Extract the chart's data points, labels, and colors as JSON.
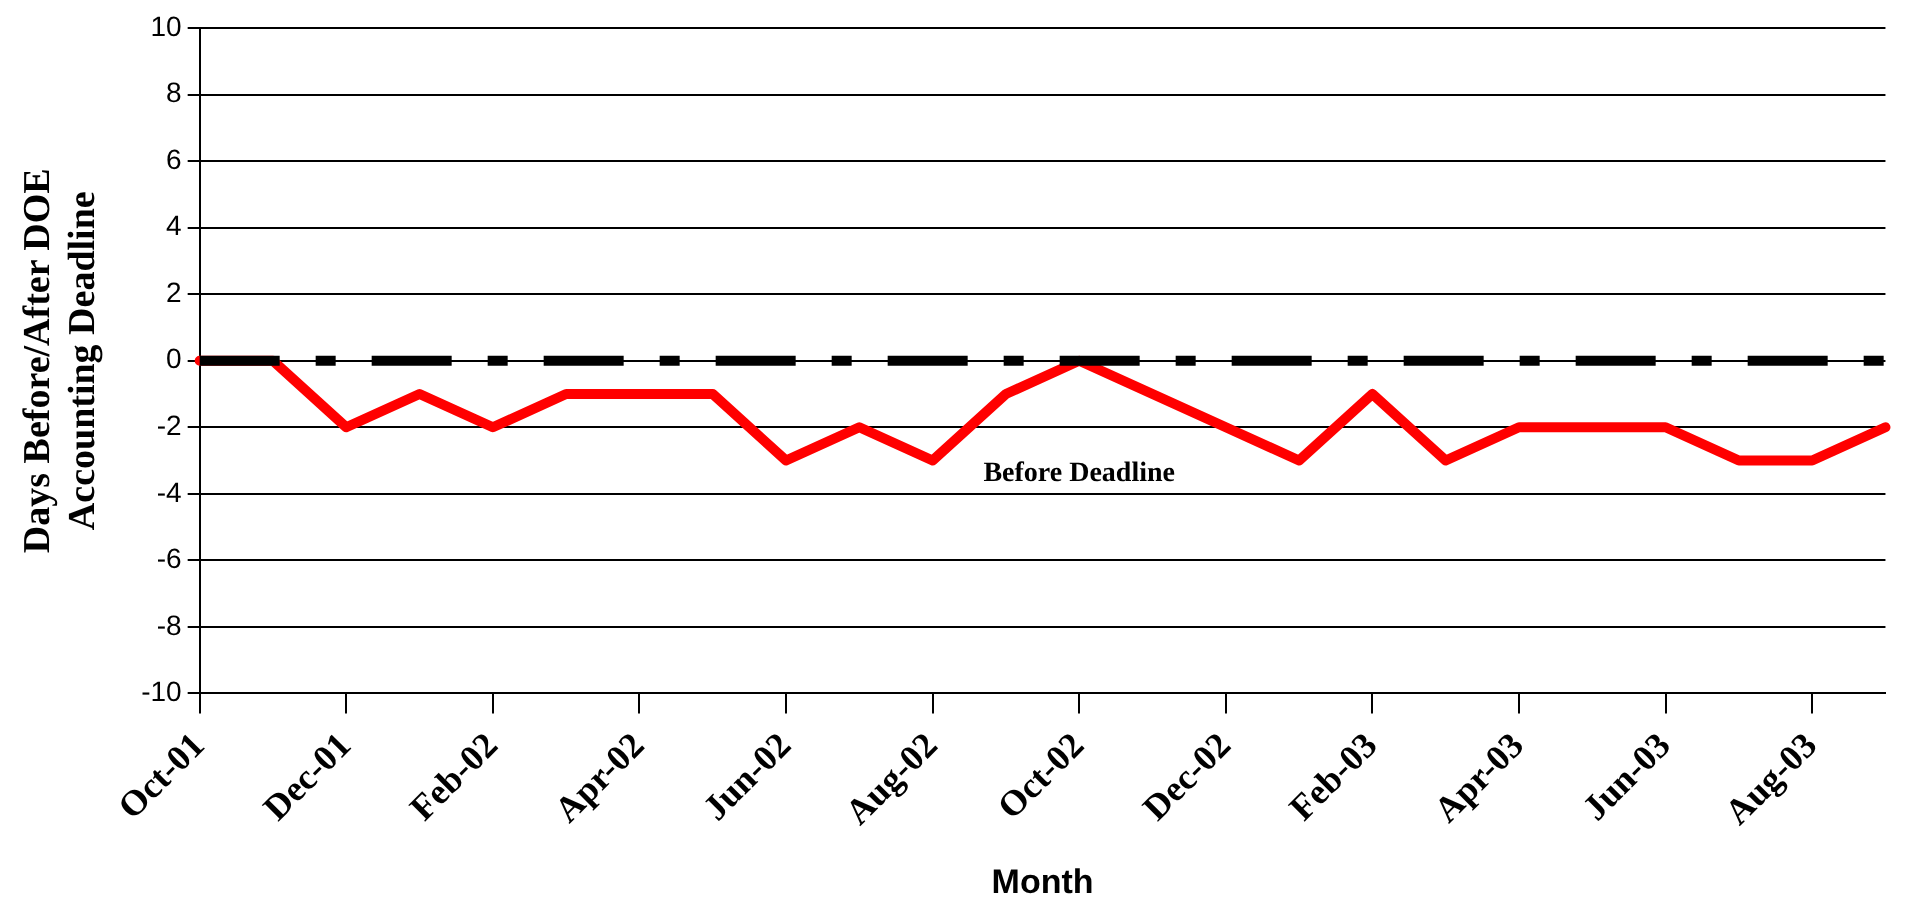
{
  "chart_data": {
    "type": "line",
    "xlabel": "Month",
    "ylabel": "Days Before/After DOE\nAccounting Deadline",
    "categories": [
      "Oct-01",
      null,
      "Dec-01",
      null,
      "Feb-02",
      null,
      "Apr-02",
      null,
      "Jun-02",
      null,
      "Aug-02",
      null,
      "Oct-02",
      null,
      "Dec-02",
      null,
      "Feb-03",
      null,
      "Apr-03",
      null,
      "Jun-03",
      null,
      "Aug-03",
      null
    ],
    "series": [
      {
        "color": "#ff0000",
        "values": [
          0,
          0,
          -2,
          -1,
          -2,
          -1,
          -1,
          -1,
          -3,
          -2,
          -3,
          -1,
          0,
          -1,
          -2,
          -3,
          -1,
          -3,
          -2,
          -2,
          -2,
          -3,
          -3,
          -2
        ]
      }
    ],
    "ylim": [
      -10,
      10
    ],
    "yticks": [
      -10,
      -8,
      -6,
      -4,
      -2,
      0,
      2,
      4,
      6,
      8,
      10
    ],
    "grid": "y",
    "legend": false,
    "marker": "none",
    "line_style": "solid",
    "ref_lines": [
      {
        "axis": "y",
        "value": 0,
        "color": "#000000",
        "line_style": "dashed"
      }
    ],
    "annotations": [
      "Before Deadline"
    ]
  }
}
